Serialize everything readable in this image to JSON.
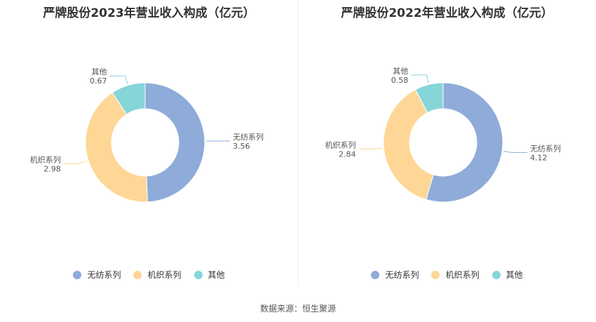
{
  "source_text": "数据来源：恒生聚源",
  "colors": [
    "#8eabd9",
    "#fed796",
    "#86d5d8"
  ],
  "chart_data": [
    {
      "type": "pie",
      "title": "严牌股份2023年营业收入构成（亿元）",
      "categories": [
        "无纺系列",
        "机织系列",
        "其他"
      ],
      "values": [
        3.56,
        2.98,
        0.67
      ],
      "legend": "bottom"
    },
    {
      "type": "pie",
      "title": "严牌股份2022年营业收入构成（亿元）",
      "categories": [
        "无纺系列",
        "机织系列",
        "其他"
      ],
      "values": [
        4.12,
        2.84,
        0.58
      ],
      "legend": "bottom"
    }
  ]
}
